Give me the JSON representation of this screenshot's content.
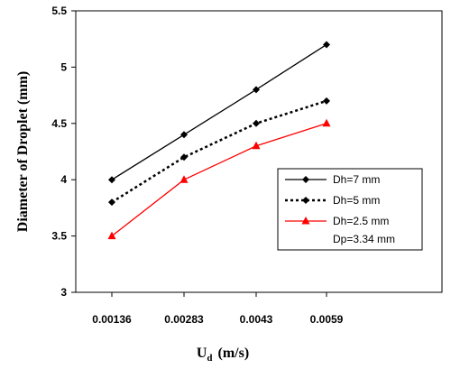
{
  "chart_data": {
    "type": "line",
    "categories": [
      "0.00136",
      "0.00283",
      "0.0043",
      "0.0059"
    ],
    "x": [
      0.00136,
      0.00283,
      0.0043,
      0.0059
    ],
    "series": [
      {
        "name": "Dh=7 mm",
        "values": [
          4.0,
          4.4,
          4.8,
          5.2
        ],
        "color": "#000000",
        "line": "solid",
        "marker": "diamond"
      },
      {
        "name": "Dh=5 mm",
        "values": [
          3.8,
          4.2,
          4.5,
          4.7
        ],
        "color": "#000000",
        "line": "dotted",
        "marker": "diamond"
      },
      {
        "name": "Dh=2.5 mm",
        "values": [
          3.5,
          4.0,
          4.3,
          4.5
        ],
        "color": "#ff0000",
        "line": "solid",
        "marker": "triangle"
      }
    ],
    "y_ticks": [
      "3",
      "3.5",
      "4",
      "4.5",
      "5",
      "5.5"
    ],
    "ylim": [
      3,
      5.5
    ],
    "xlabel_main": "U",
    "xlabel_sub": "d",
    "xlabel_unit": "(m/s)",
    "ylabel": "Diameter of Droplet (mm)",
    "legend_note": "Dp=3.34 mm",
    "legend_position": "lower-right",
    "grid": false
  }
}
